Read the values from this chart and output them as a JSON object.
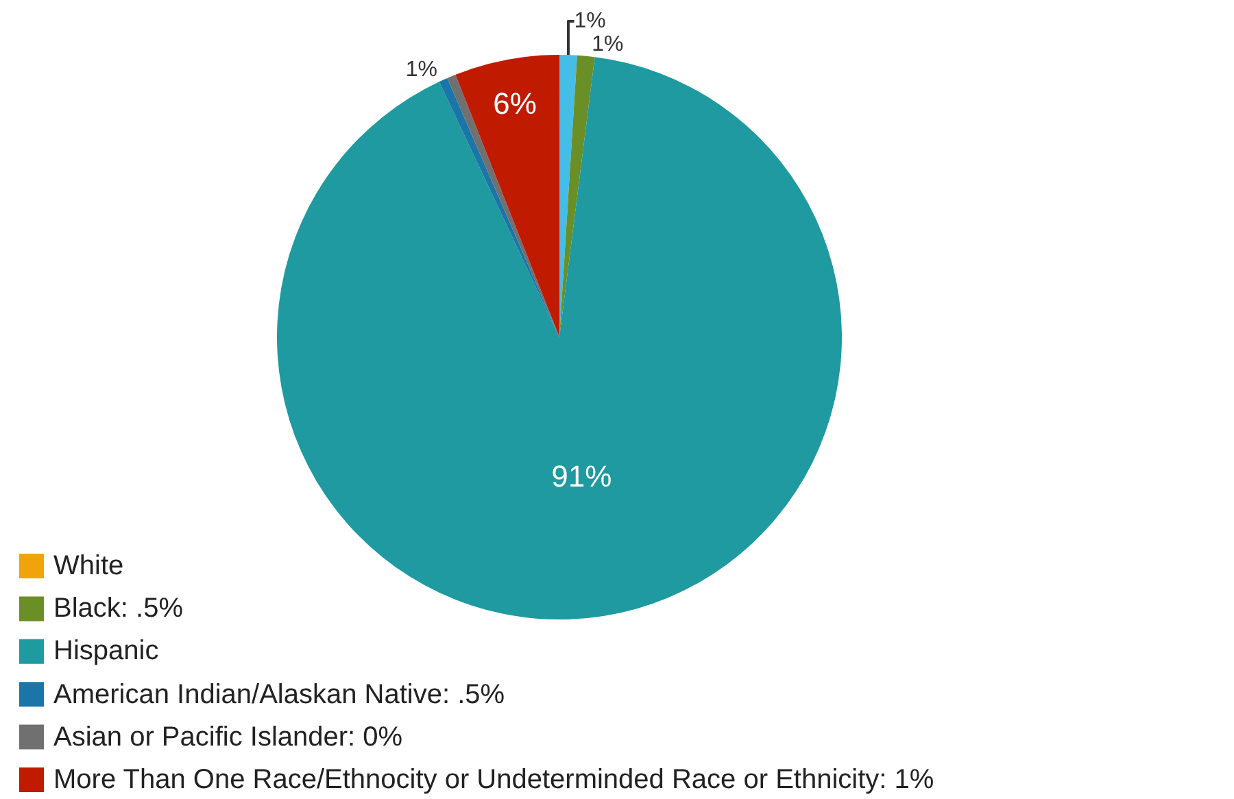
{
  "chart_data": {
    "type": "pie",
    "categories": [
      null,
      "White",
      "Black: .5%",
      "Hispanic",
      "American Indian/Alaskan Native: .5%",
      "Asian or Pacific Islander: 0%",
      "More Than One Race/Ethnocity or Undeterminded Race or Ethnicity: 1%"
    ],
    "values": [
      1,
      0,
      1,
      91,
      0.5,
      0.5,
      6
    ],
    "colors": [
      "#45bde6",
      "#f0a30a",
      "#6a8f26",
      "#1e9aa0",
      "#1a75a8",
      "#707070",
      "#c01a00"
    ],
    "value_labels": [
      "1%",
      null,
      "1%",
      "91%",
      "1%",
      null,
      "6%"
    ],
    "legend": "bottom left"
  }
}
